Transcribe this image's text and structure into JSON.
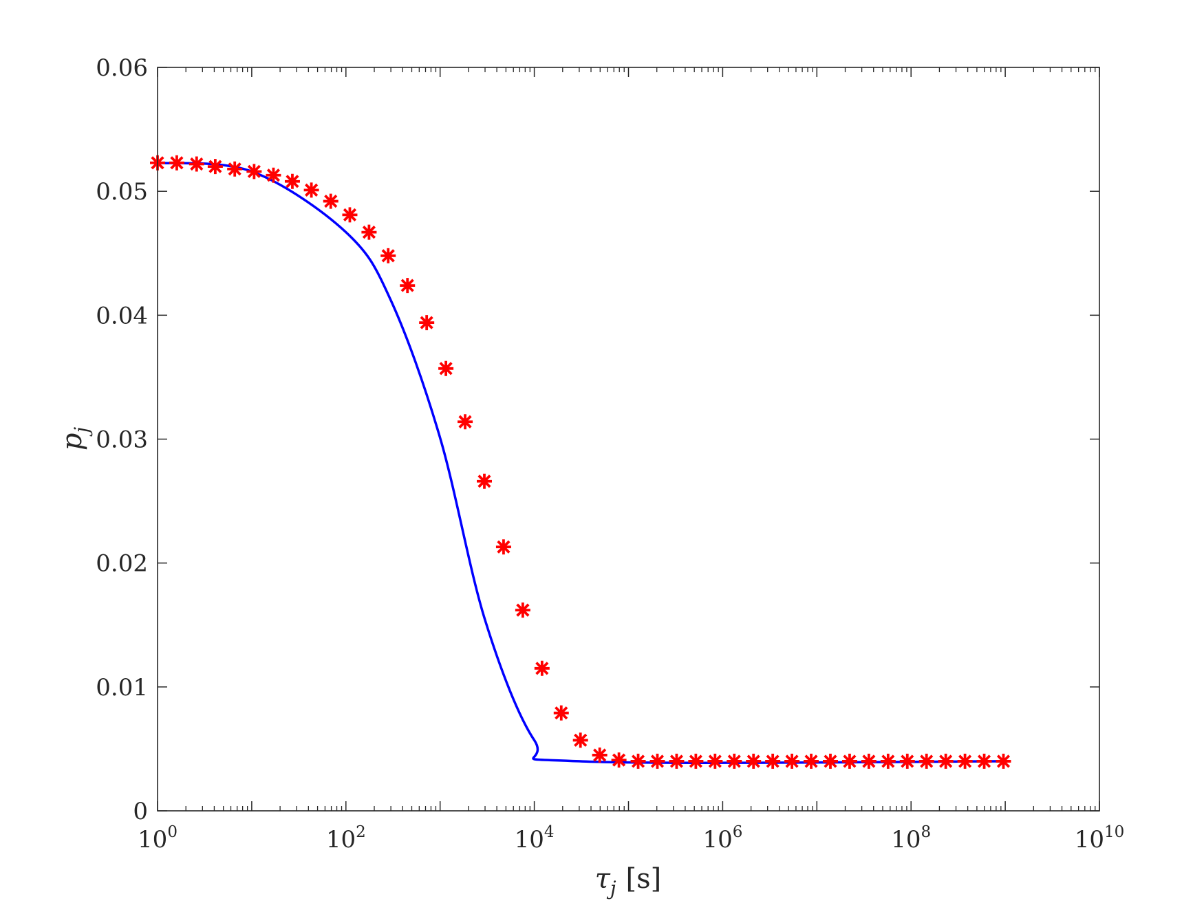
{
  "chart_data": {
    "type": "line",
    "title": "",
    "xlabel": {
      "symbol": "τ",
      "subscript": "j",
      "unit": "[s]"
    },
    "ylabel": {
      "symbol": "p",
      "subscript": "j"
    },
    "xscale": "log",
    "xlim": [
      1,
      10000000000
    ],
    "ylim": [
      0,
      0.06
    ],
    "grid": false,
    "legend": "none",
    "x_ticks": [
      {
        "base": "10",
        "exp": "0"
      },
      {
        "base": "10",
        "exp": "2"
      },
      {
        "base": "10",
        "exp": "4"
      },
      {
        "base": "10",
        "exp": "6"
      },
      {
        "base": "10",
        "exp": "8"
      },
      {
        "base": "10",
        "exp": "10"
      }
    ],
    "y_ticks": [
      "0",
      "0.01",
      "0.02",
      "0.03",
      "0.04",
      "0.05",
      "0.06"
    ],
    "series": [
      {
        "style": "line",
        "color": "#0000ff",
        "x": [
          1,
          10,
          100,
          300,
          1000,
          3000,
          10000,
          30000,
          1000000000
        ],
        "y": [
          0.0523,
          0.0516,
          0.0467,
          0.0412,
          0.0301,
          0.0154,
          0.0057,
          0.004,
          0.004
        ]
      },
      {
        "style": "markers",
        "marker": "asterisk",
        "color": "#ff0000",
        "x": [
          1.0,
          1.6,
          2.6,
          4.1,
          6.6,
          10.6,
          17,
          27,
          43,
          69,
          110,
          176,
          281,
          450,
          720,
          1152,
          1843,
          2949,
          4718,
          7549,
          12078,
          19326,
          30921,
          49474,
          79158,
          126653,
          202645,
          324232,
          518771,
          830034,
          1328054,
          2124887,
          3399819,
          5439710,
          8703537,
          13925659,
          22281055,
          35649687,
          57039500,
          91263200,
          146021120,
          233633792,
          373814067,
          598102507,
          956964012
        ],
        "y": [
          0.0523,
          0.0523,
          0.0522,
          0.052,
          0.0518,
          0.0516,
          0.0513,
          0.0508,
          0.0501,
          0.0492,
          0.0481,
          0.0467,
          0.0448,
          0.0424,
          0.0394,
          0.0357,
          0.0314,
          0.0266,
          0.0213,
          0.0162,
          0.0115,
          0.0079,
          0.0057,
          0.0045,
          0.0041,
          0.004,
          0.004,
          0.004,
          0.004,
          0.004,
          0.004,
          0.004,
          0.004,
          0.004,
          0.004,
          0.004,
          0.004,
          0.004,
          0.004,
          0.004,
          0.004,
          0.004,
          0.004,
          0.004,
          0.004
        ]
      }
    ]
  }
}
